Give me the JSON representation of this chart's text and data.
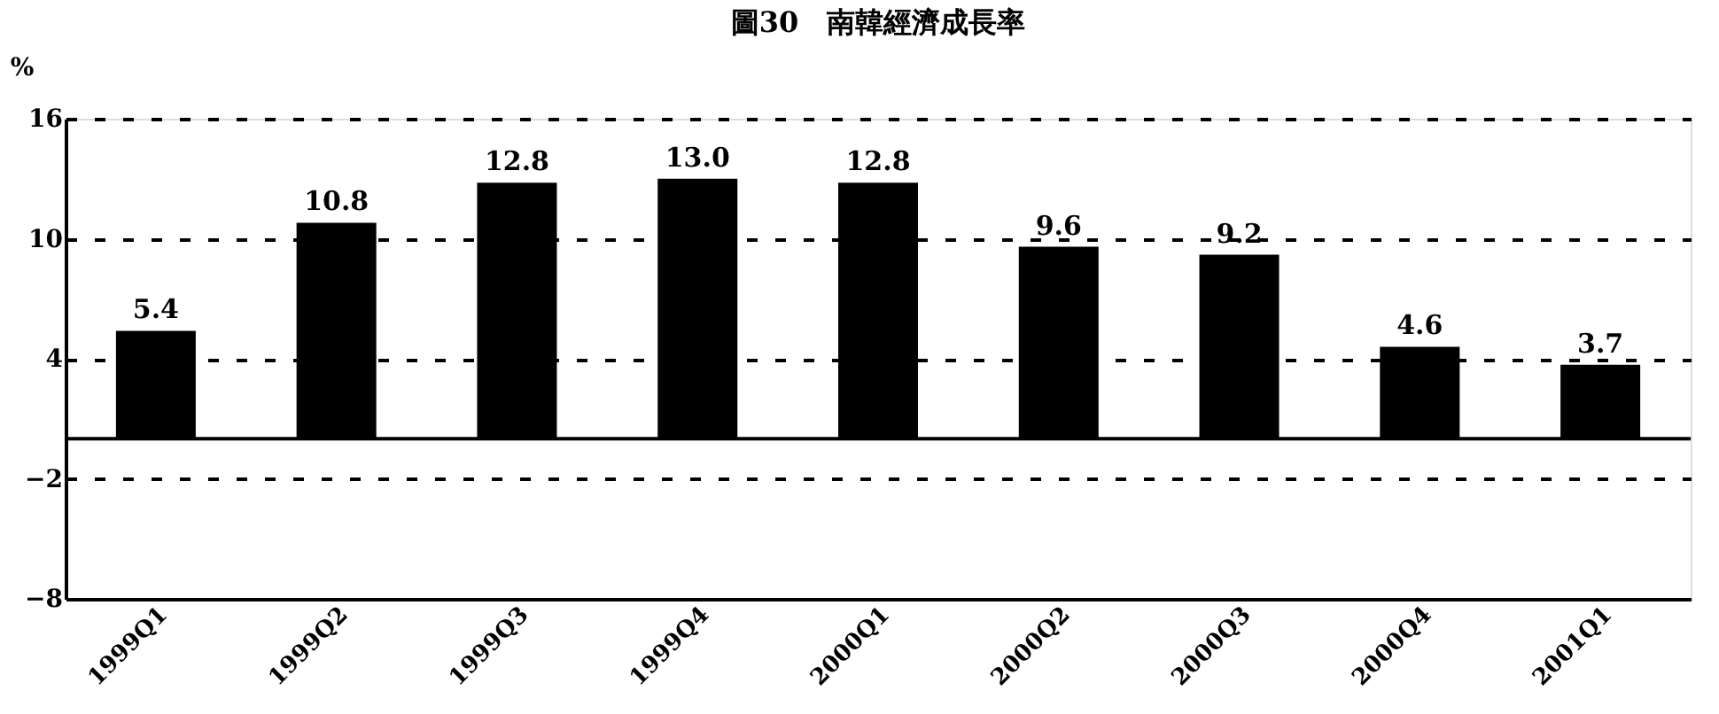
{
  "chart_data": {
    "type": "bar",
    "title": "圖30　南韓經濟成長率",
    "ylabel": "%",
    "categories": [
      "1999Q1",
      "1999Q2",
      "1999Q3",
      "1999Q4",
      "2000Q1",
      "2000Q2",
      "2000Q3",
      "2000Q4",
      "2001Q1"
    ],
    "values": [
      5.4,
      10.8,
      12.8,
      13.0,
      12.8,
      9.6,
      9.2,
      4.6,
      3.7
    ],
    "value_labels": [
      "5.4",
      "10.8",
      "12.8",
      "13.0",
      "12.8",
      "9.6",
      "9.2",
      "4.6",
      "3.7"
    ],
    "color": "#000000",
    "ylim": [
      -8,
      16
    ],
    "yticks": [
      -8,
      -2,
      4,
      10,
      16
    ],
    "grid": "y",
    "ref_lines": [
      {
        "axis": "y",
        "value": 0,
        "color": "#000000",
        "line_style": "solid"
      }
    ]
  }
}
